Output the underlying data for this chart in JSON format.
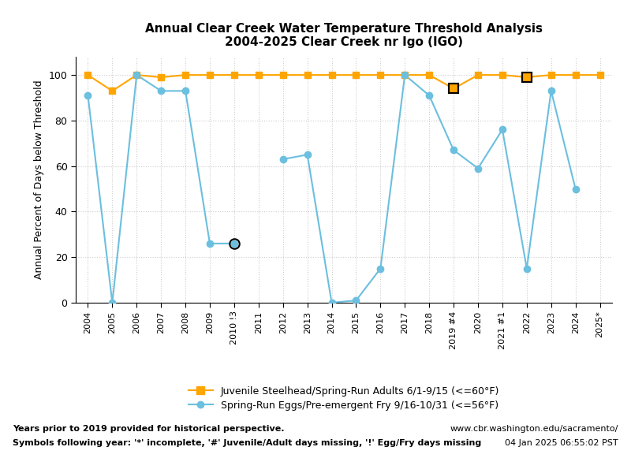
{
  "title_line1": "Annual Clear Creek Water Temperature Threshold Analysis",
  "title_line2": "2004-2025 Clear Creek nr Igo (IGO)",
  "ylabel": "Annual Percent of Days below Threshold",
  "x_labels": [
    "2004",
    "2005",
    "2006",
    "2007",
    "2008",
    "2009",
    "2010 !3",
    "2011",
    "2012",
    "2013",
    "2014",
    "2015",
    "2016",
    "2017",
    "2018",
    "2019 #4",
    "2020",
    "2021 #1",
    "2022",
    "2023",
    "2024",
    "2025*"
  ],
  "steelhead_values": [
    100,
    93,
    100,
    99,
    100,
    100,
    100,
    100,
    100,
    100,
    100,
    100,
    100,
    100,
    100,
    94,
    100,
    100,
    99,
    100,
    100,
    100
  ],
  "steelhead_open": [
    false,
    false,
    false,
    false,
    false,
    false,
    false,
    false,
    false,
    false,
    false,
    false,
    false,
    false,
    false,
    true,
    false,
    false,
    true,
    false,
    false,
    false
  ],
  "fry_values": [
    91,
    0,
    100,
    93,
    93,
    26,
    26,
    null,
    63,
    65,
    0,
    1,
    15,
    100,
    91,
    67,
    59,
    76,
    15,
    93,
    50,
    null
  ],
  "fry_open": [
    false,
    false,
    false,
    false,
    false,
    false,
    true,
    false,
    false,
    false,
    false,
    false,
    false,
    false,
    false,
    false,
    false,
    false,
    false,
    false,
    false,
    false
  ],
  "steelhead_color": "#FFA500",
  "fry_color": "#6BBFDF",
  "background_color": "#FFFFFF",
  "grid_color": "#CCCCCC",
  "ylim": [
    0,
    108
  ],
  "yticks": [
    0,
    20,
    40,
    60,
    80,
    100
  ],
  "legend_label_steelhead": "Juvenile Steelhead/Spring-Run Adults 6/1-9/15 (<=60°F)",
  "legend_label_fry": "Spring-Run Eggs/Pre-emergent Fry 9/16-10/31 (<=56°F)",
  "footnote_left1": "Years prior to 2019 provided for historical perspective.",
  "footnote_left2": "Symbols following year: '*' incomplete, '#' Juvenile/Adult days missing, '!' Egg/Fry days missing",
  "footnote_right1": "www.cbr.washington.edu/sacramento/",
  "footnote_right2": "04 Jan 2025 06:55:02 PST"
}
